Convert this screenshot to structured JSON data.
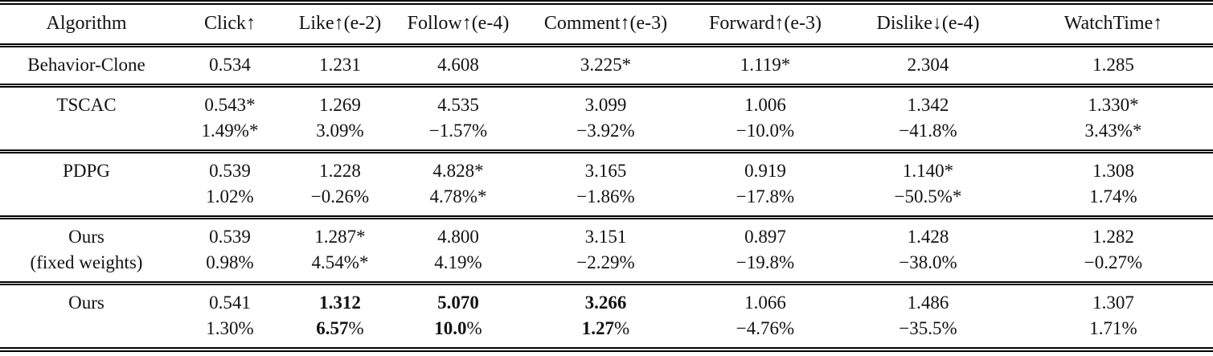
{
  "table": {
    "columns": [
      "Algorithm",
      "Click↑",
      "Like↑(e-2)",
      "Follow↑(e-4)",
      "Comment↑(e-3)",
      "Forward↑(e-3)",
      "Dislike↓(e-4)",
      "WatchTime↑"
    ],
    "groups": [
      {
        "algorithm": [
          "Behavior-Clone"
        ],
        "values": [
          "0.534",
          "1.231",
          "4.608",
          "3.225*",
          "1.119*",
          "2.304",
          "1.285"
        ]
      },
      {
        "algorithm": [
          "TSCAC"
        ],
        "values": [
          "0.543*",
          "1.269",
          "4.535",
          "3.099",
          "1.006",
          "1.342",
          "1.330*"
        ],
        "percents": [
          "1.49%*",
          "3.09%",
          "−1.57%",
          "−3.92%",
          "−10.0%",
          "−41.8%",
          "3.43%*"
        ]
      },
      {
        "algorithm": [
          "PDPG"
        ],
        "values": [
          "0.539",
          "1.228",
          "4.828*",
          "3.165",
          "0.919",
          "1.140*",
          "1.308"
        ],
        "percents": [
          "1.02%",
          "−0.26%",
          "4.78%*",
          "−1.86%",
          "−17.8%",
          "−50.5%*",
          "1.74%"
        ]
      },
      {
        "algorithm": [
          "Ours",
          "(fixed weights)"
        ],
        "values": [
          "0.539",
          "1.287*",
          "4.800",
          "3.151",
          "0.897",
          "1.428",
          "1.282"
        ],
        "percents": [
          "0.98%",
          "4.54%*",
          "4.19%",
          "−2.29%",
          "−19.8%",
          "−38.0%",
          "−0.27%"
        ]
      },
      {
        "algorithm": [
          "Ours"
        ],
        "values": [
          "0.541",
          "1.312",
          "5.070",
          "3.266",
          "1.066",
          "1.486",
          "1.307"
        ],
        "values_bold": [
          false,
          true,
          true,
          true,
          false,
          false,
          false
        ],
        "percents": [
          "1.30%",
          "6.57%",
          "10.0%",
          "1.27%",
          "−4.76%",
          "−35.5%",
          "1.71%"
        ],
        "percents_bold": [
          false,
          true,
          true,
          true,
          false,
          false,
          false
        ]
      }
    ],
    "colors": {
      "text": "#111111",
      "rule": "#000000",
      "background": "#ffffff"
    }
  }
}
